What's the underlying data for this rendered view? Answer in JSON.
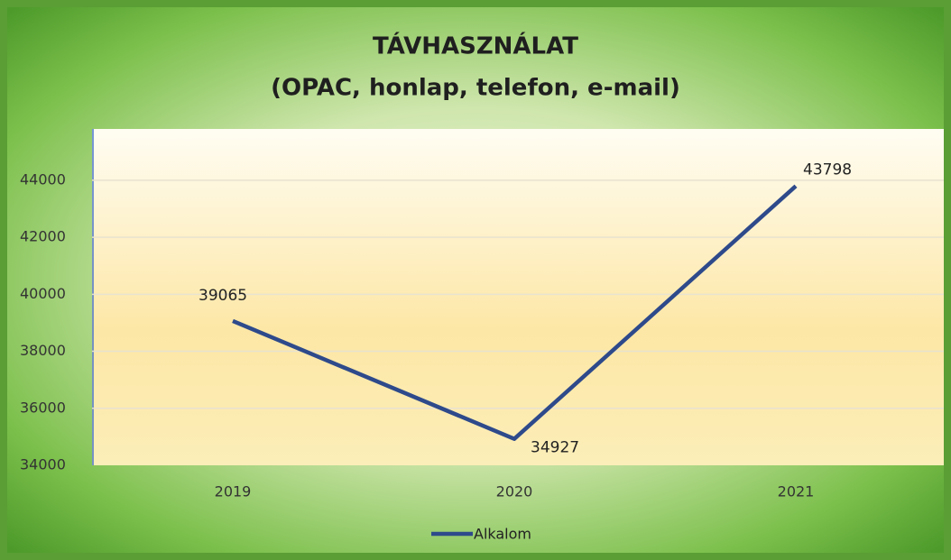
{
  "chart_data": {
    "type": "line",
    "title": "TÁVHASZNÁLAT",
    "subtitle": "(OPAC, honlap, telefon, e-mail)",
    "categories": [
      "2019",
      "2020",
      "2021"
    ],
    "series": [
      {
        "name": "Alkalom",
        "color": "#2e4a8b",
        "values": [
          39065,
          34927,
          43798
        ]
      }
    ],
    "ylim": [
      34000,
      45800
    ],
    "yticks": [
      34000,
      36000,
      38000,
      40000,
      42000,
      44000
    ],
    "grid": true,
    "legend": "bottom"
  }
}
